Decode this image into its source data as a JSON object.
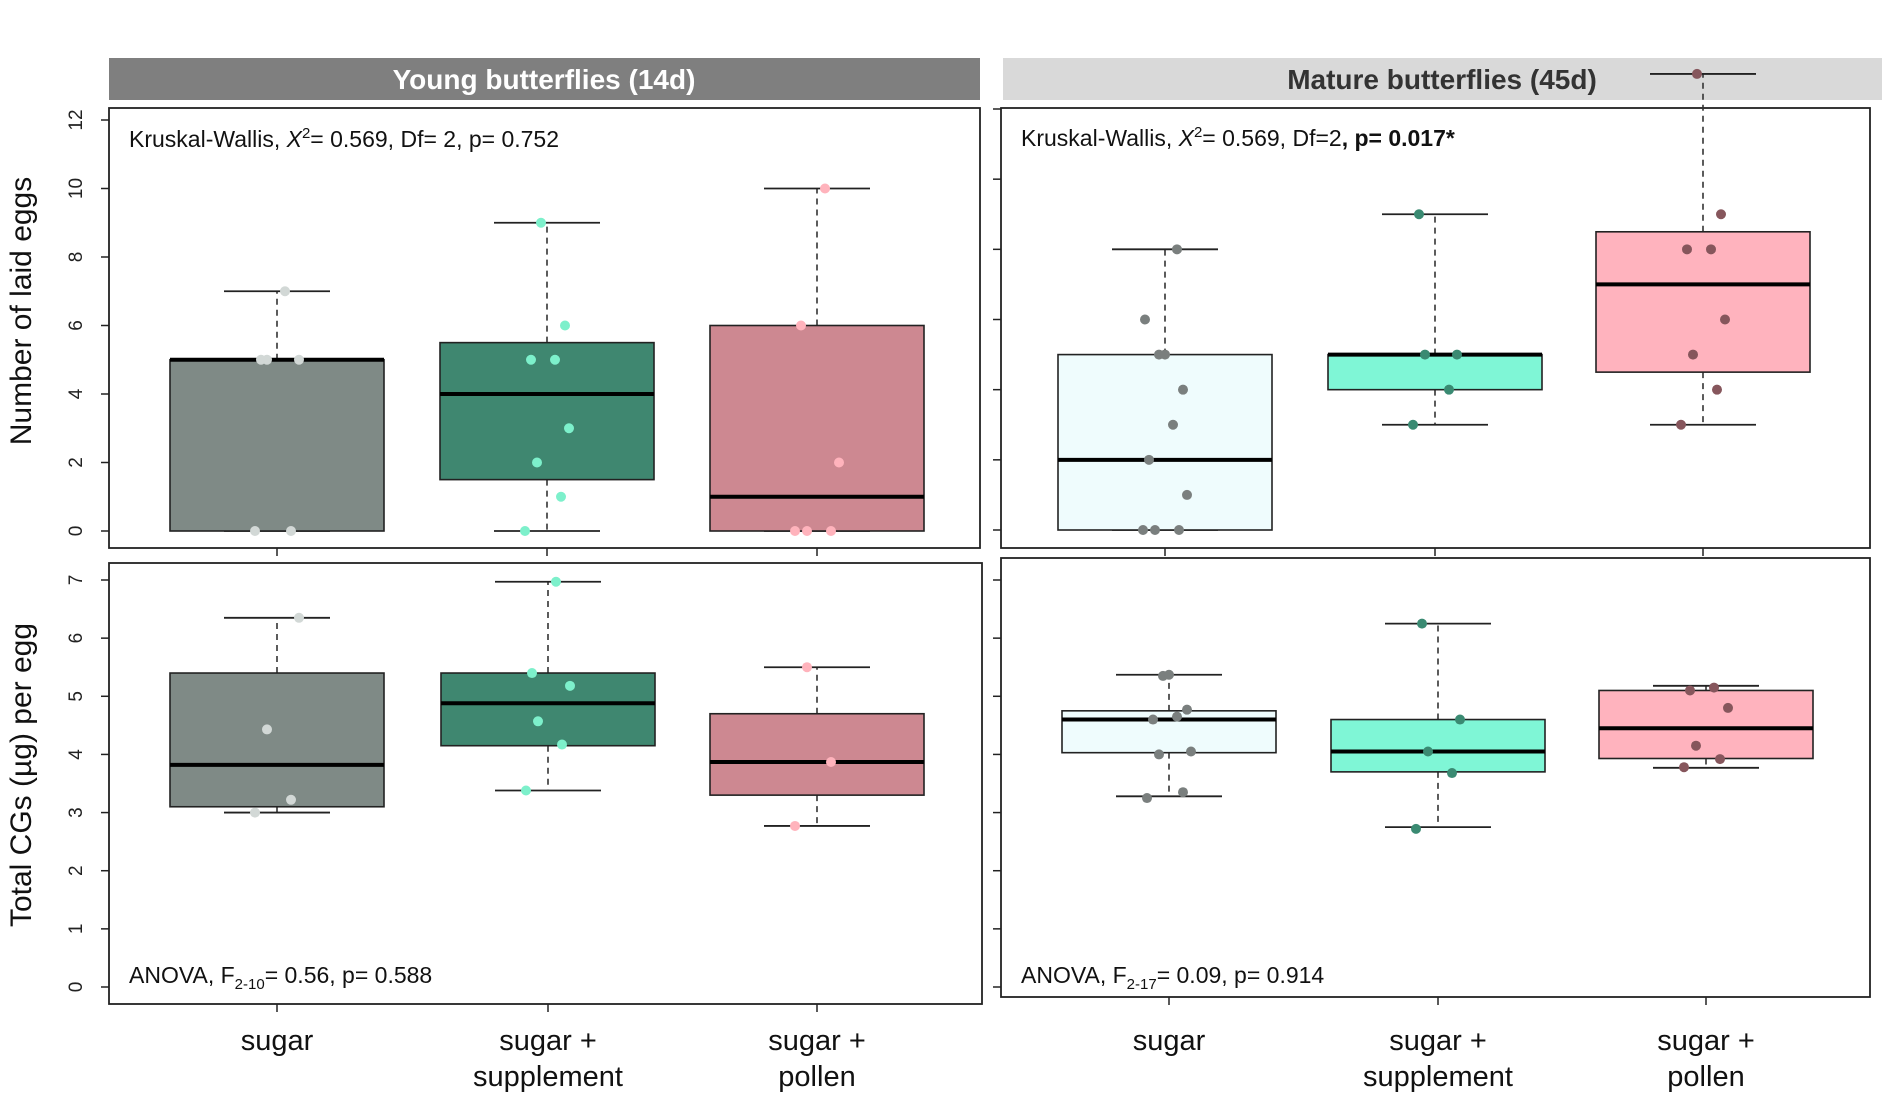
{
  "chart_data": [
    {
      "type": "boxplot",
      "facet": "Young butterflies (14d)",
      "ylabel": "Number of laid eggs",
      "ylim": [
        0,
        12
      ],
      "yticks": [
        "0",
        "2",
        "4",
        "6",
        "8",
        "10",
        "12"
      ],
      "annotation": {
        "pre": "Kruskal-Wallis, ",
        "xsym": "X",
        "sup": "2",
        "post": "= 0.569, Df= 2, p= 0.752",
        "bold": ""
      },
      "categories": [
        "sugar",
        "sugar + supplement",
        "sugar + pollen"
      ],
      "series": [
        {
          "q1": 0,
          "median": 5,
          "q3": 5,
          "whisker_low": 0,
          "whisker_high": 7,
          "points": [
            0,
            0,
            5,
            5,
            5,
            7
          ]
        },
        {
          "q1": 1.5,
          "median": 4,
          "q3": 5.5,
          "whisker_low": 0,
          "whisker_high": 9,
          "points": [
            0,
            1,
            2,
            3,
            5,
            5,
            6,
            9
          ]
        },
        {
          "q1": 0,
          "median": 1,
          "q3": 6,
          "whisker_low": 0,
          "whisker_high": 10,
          "points": [
            0,
            0,
            0,
            2,
            6,
            10
          ]
        }
      ]
    },
    {
      "type": "boxplot",
      "facet": "Mature butterflies (45d)",
      "ylabel": "",
      "ylim": [
        0,
        12
      ],
      "yticks": [],
      "annotation": {
        "pre": "Kruskal-Wallis, ",
        "xsym": "X",
        "sup": "2",
        "post": "= 0.569, Df=2",
        "bold": ", p= 0.017*"
      },
      "categories": [
        "sugar",
        "sugar + supplement",
        "sugar + pollen"
      ],
      "series": [
        {
          "q1": 0,
          "median": 2,
          "q3": 5,
          "whisker_low": 0,
          "whisker_high": 8,
          "points": [
            0,
            0,
            0,
            1,
            2,
            3,
            4,
            5,
            5,
            6,
            8
          ]
        },
        {
          "q1": 4,
          "median": 5,
          "q3": 5,
          "whisker_low": 3,
          "whisker_high": 9,
          "points": [
            3,
            4,
            5,
            5,
            9
          ]
        },
        {
          "q1": 4.5,
          "median": 7,
          "q3": 8.5,
          "whisker_low": 3,
          "whisker_high": 13,
          "points": [
            3,
            4,
            5,
            6,
            8,
            8,
            9,
            13
          ]
        }
      ]
    },
    {
      "type": "boxplot",
      "facet": "Young butterflies (14d)",
      "ylabel": "Total CGs (µg) per egg",
      "ylim": [
        0,
        7
      ],
      "yticks": [
        "0",
        "1",
        "2",
        "3",
        "4",
        "5",
        "6",
        "7"
      ],
      "annotation": {
        "pre": "ANOVA, F",
        "sub": "2-10",
        "post": "= 0.56, p= 0.588"
      },
      "categories": [
        "sugar",
        "sugar + supplement",
        "sugar + pollen"
      ],
      "series": [
        {
          "q1": 3.1,
          "median": 3.82,
          "q3": 5.4,
          "whisker_low": 3.0,
          "whisker_high": 6.35,
          "points": [
            3.0,
            3.22,
            4.43,
            6.35
          ]
        },
        {
          "q1": 4.15,
          "median": 4.88,
          "q3": 5.4,
          "whisker_low": 3.38,
          "whisker_high": 6.97,
          "points": [
            3.38,
            4.17,
            4.57,
            5.18,
            5.4,
            6.97
          ]
        },
        {
          "q1": 3.3,
          "median": 3.87,
          "q3": 4.7,
          "whisker_low": 2.77,
          "whisker_high": 5.5,
          "points": [
            2.77,
            3.87,
            5.5
          ]
        }
      ]
    },
    {
      "type": "boxplot",
      "facet": "Mature butterflies (45d)",
      "ylabel": "",
      "ylim": [
        0,
        7
      ],
      "yticks": [],
      "annotation": {
        "pre": "ANOVA, F",
        "sub": "2-17",
        "post": "= 0.09, p= 0.914"
      },
      "categories": [
        "sugar",
        "sugar + supplement",
        "sugar + pollen"
      ],
      "series": [
        {
          "q1": 4.03,
          "median": 4.6,
          "q3": 4.75,
          "whisker_low": 3.28,
          "whisker_high": 5.37,
          "points": [
            3.25,
            3.35,
            4.0,
            4.05,
            4.6,
            4.65,
            4.77,
            5.35,
            5.37
          ]
        },
        {
          "q1": 3.7,
          "median": 4.05,
          "q3": 4.6,
          "whisker_low": 2.75,
          "whisker_high": 6.25,
          "points": [
            2.72,
            3.68,
            4.05,
            4.6,
            6.25
          ]
        },
        {
          "q1": 3.93,
          "median": 4.45,
          "q3": 5.1,
          "whisker_low": 3.77,
          "whisker_high": 5.18,
          "points": [
            3.78,
            3.92,
            4.15,
            4.8,
            5.1,
            5.15
          ]
        }
      ]
    }
  ],
  "facets": [
    "Young butterflies (14d)",
    "Mature butterflies (45d)"
  ],
  "x_labels": [
    [
      "sugar"
    ],
    [
      "sugar +",
      "supplement"
    ],
    [
      "sugar +",
      "pollen"
    ]
  ],
  "colors": {
    "young_box": [
      "#7f8a86",
      "#3f8770",
      "#cd8891"
    ],
    "young_dot": [
      "#d2d8d6",
      "#7df0cb",
      "#ffb3bc"
    ],
    "mature_box": [
      "#effcfd",
      "#7ff6d6",
      "#ffb3be"
    ],
    "mature_dot": [
      "#7a7f7e",
      "#3a8a72",
      "#86565c"
    ],
    "strip_left_bg": "#7f7f7f",
    "strip_left_text": "#ffffff",
    "strip_right_bg": "#d9d9d9",
    "strip_right_text": "#333333"
  }
}
